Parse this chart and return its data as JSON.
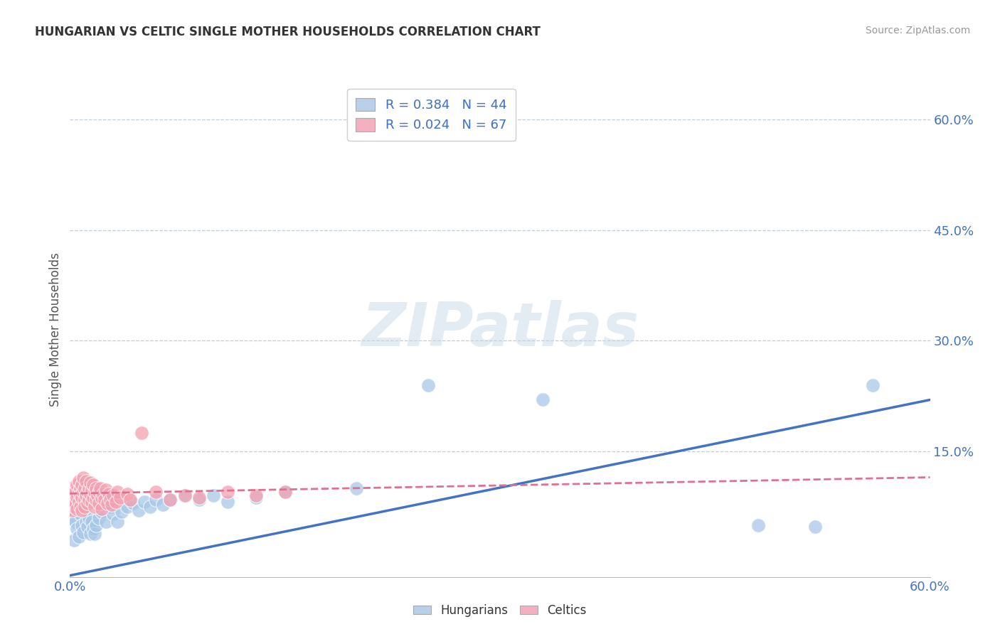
{
  "title": "HUNGARIAN VS CELTIC SINGLE MOTHER HOUSEHOLDS CORRELATION CHART",
  "source": "Source: ZipAtlas.com",
  "ylabel": "Single Mother Households",
  "xlim": [
    0.0,
    0.6
  ],
  "ylim": [
    -0.02,
    0.65
  ],
  "x_ticks": [
    0.0,
    0.1,
    0.2,
    0.3,
    0.4,
    0.5,
    0.6
  ],
  "x_tick_labels": [
    "0.0%",
    "",
    "",
    "",
    "",
    "",
    "60.0%"
  ],
  "y_ticks_right": [
    0.6,
    0.45,
    0.3,
    0.15,
    0.0
  ],
  "y_tick_labels_right": [
    "60.0%",
    "45.0%",
    "30.0%",
    "15.0%",
    ""
  ],
  "hungarian_color": "#a8c8e8",
  "celtic_color": "#f4a0b0",
  "trend_hungarian_color": "#4472c4",
  "trend_celtic_color": "#e07090",
  "watermark": "ZIPatlas",
  "hungarian_points": [
    [
      0.002,
      0.06
    ],
    [
      0.003,
      0.03
    ],
    [
      0.004,
      0.055
    ],
    [
      0.005,
      0.045
    ],
    [
      0.006,
      0.035
    ],
    [
      0.007,
      0.065
    ],
    [
      0.008,
      0.05
    ],
    [
      0.009,
      0.04
    ],
    [
      0.01,
      0.07
    ],
    [
      0.011,
      0.055
    ],
    [
      0.012,
      0.048
    ],
    [
      0.013,
      0.06
    ],
    [
      0.014,
      0.038
    ],
    [
      0.015,
      0.055
    ],
    [
      0.016,
      0.045
    ],
    [
      0.017,
      0.038
    ],
    [
      0.018,
      0.05
    ],
    [
      0.02,
      0.06
    ],
    [
      0.022,
      0.068
    ],
    [
      0.025,
      0.055
    ],
    [
      0.028,
      0.075
    ],
    [
      0.03,
      0.065
    ],
    [
      0.033,
      0.055
    ],
    [
      0.036,
      0.068
    ],
    [
      0.04,
      0.075
    ],
    [
      0.044,
      0.08
    ],
    [
      0.048,
      0.07
    ],
    [
      0.052,
      0.082
    ],
    [
      0.056,
      0.075
    ],
    [
      0.06,
      0.085
    ],
    [
      0.065,
      0.078
    ],
    [
      0.07,
      0.085
    ],
    [
      0.08,
      0.09
    ],
    [
      0.09,
      0.085
    ],
    [
      0.1,
      0.09
    ],
    [
      0.11,
      0.082
    ],
    [
      0.13,
      0.088
    ],
    [
      0.15,
      0.095
    ],
    [
      0.2,
      0.1
    ],
    [
      0.25,
      0.24
    ],
    [
      0.33,
      0.22
    ],
    [
      0.48,
      0.05
    ],
    [
      0.52,
      0.048
    ],
    [
      0.56,
      0.24
    ]
  ],
  "celtic_points": [
    [
      0.001,
      0.1
    ],
    [
      0.002,
      0.085
    ],
    [
      0.002,
      0.07
    ],
    [
      0.003,
      0.09
    ],
    [
      0.003,
      0.075
    ],
    [
      0.004,
      0.095
    ],
    [
      0.004,
      0.08
    ],
    [
      0.005,
      0.105
    ],
    [
      0.005,
      0.088
    ],
    [
      0.005,
      0.072
    ],
    [
      0.006,
      0.095
    ],
    [
      0.006,
      0.11
    ],
    [
      0.006,
      0.082
    ],
    [
      0.007,
      0.1
    ],
    [
      0.007,
      0.09
    ],
    [
      0.007,
      0.075
    ],
    [
      0.008,
      0.105
    ],
    [
      0.008,
      0.088
    ],
    [
      0.008,
      0.07
    ],
    [
      0.009,
      0.095
    ],
    [
      0.009,
      0.115
    ],
    [
      0.01,
      0.1
    ],
    [
      0.01,
      0.085
    ],
    [
      0.01,
      0.075
    ],
    [
      0.011,
      0.09
    ],
    [
      0.011,
      0.11
    ],
    [
      0.012,
      0.095
    ],
    [
      0.012,
      0.08
    ],
    [
      0.013,
      0.1
    ],
    [
      0.013,
      0.085
    ],
    [
      0.014,
      0.092
    ],
    [
      0.014,
      0.108
    ],
    [
      0.015,
      0.098
    ],
    [
      0.015,
      0.082
    ],
    [
      0.016,
      0.088
    ],
    [
      0.016,
      0.105
    ],
    [
      0.017,
      0.095
    ],
    [
      0.017,
      0.075
    ],
    [
      0.018,
      0.1
    ],
    [
      0.018,
      0.085
    ],
    [
      0.019,
      0.09
    ],
    [
      0.02,
      0.095
    ],
    [
      0.02,
      0.08
    ],
    [
      0.021,
      0.1
    ],
    [
      0.022,
      0.088
    ],
    [
      0.022,
      0.072
    ],
    [
      0.023,
      0.092
    ],
    [
      0.024,
      0.085
    ],
    [
      0.025,
      0.098
    ],
    [
      0.026,
      0.08
    ],
    [
      0.027,
      0.092
    ],
    [
      0.028,
      0.085
    ],
    [
      0.029,
      0.078
    ],
    [
      0.03,
      0.09
    ],
    [
      0.032,
      0.082
    ],
    [
      0.033,
      0.095
    ],
    [
      0.035,
      0.088
    ],
    [
      0.04,
      0.092
    ],
    [
      0.042,
      0.085
    ],
    [
      0.05,
      0.175
    ],
    [
      0.06,
      0.095
    ],
    [
      0.07,
      0.085
    ],
    [
      0.08,
      0.09
    ],
    [
      0.09,
      0.088
    ],
    [
      0.11,
      0.095
    ],
    [
      0.13,
      0.09
    ],
    [
      0.15,
      0.095
    ]
  ]
}
